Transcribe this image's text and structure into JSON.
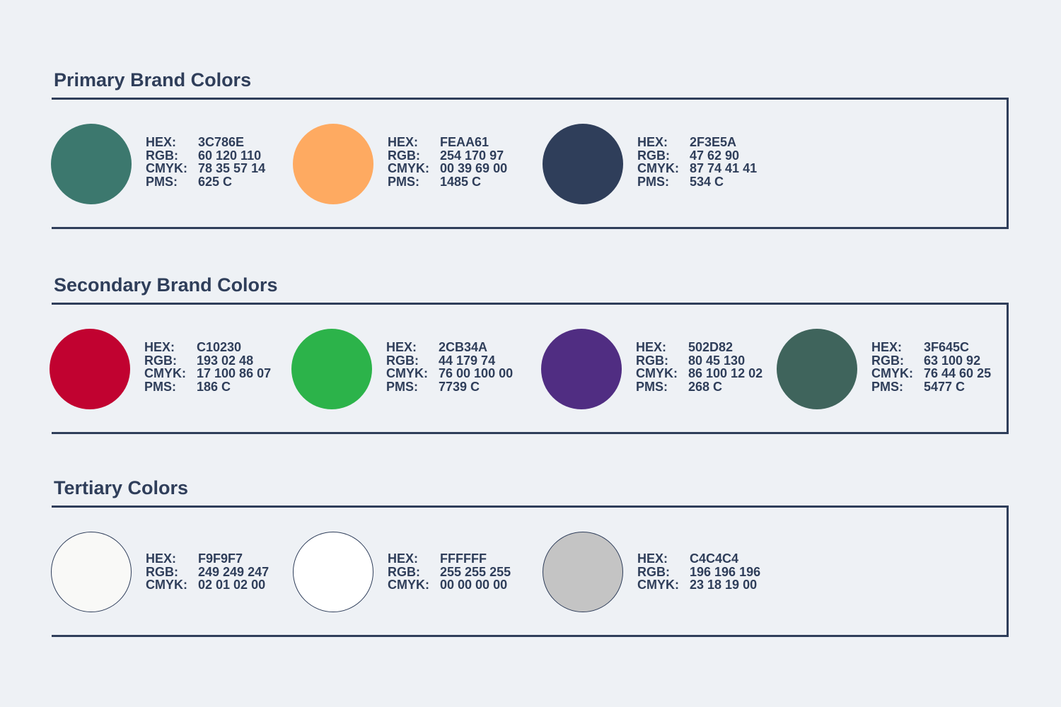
{
  "sections": [
    {
      "title": "Primary Brand Colors",
      "swatches": [
        {
          "hex": "3C786E",
          "rgb": "60 120 110",
          "cmyk": "78 35 57 14",
          "pms": "625 C",
          "fill": "#3C786E"
        },
        {
          "hex": "FEAA61",
          "rgb": "254 170 97",
          "cmyk": "00 39 69 00",
          "pms": "1485 C",
          "fill": "#FEAA61"
        },
        {
          "hex": "2F3E5A",
          "rgb": "47 62 90",
          "cmyk": "87 74 41 41",
          "pms": "534 C",
          "fill": "#2F3E5A"
        }
      ]
    },
    {
      "title": "Secondary Brand Colors",
      "swatches": [
        {
          "hex": "C10230",
          "rgb": "193 02 48",
          "cmyk": "17 100 86 07",
          "pms": "186 C",
          "fill": "#C10230"
        },
        {
          "hex": "2CB34A",
          "rgb": "44 179 74",
          "cmyk": "76 00 100 00",
          "pms": "7739 C",
          "fill": "#2CB34A"
        },
        {
          "hex": "502D82",
          "rgb": "80 45 130",
          "cmyk": "86 100 12 02",
          "pms": "268 C",
          "fill": "#502D82"
        },
        {
          "hex": "3F645C",
          "rgb": "63 100 92",
          "cmyk": "76 44 60 25",
          "pms": "5477 C",
          "fill": "#3F645C"
        }
      ]
    },
    {
      "title": "Tertiary Colors",
      "swatches": [
        {
          "hex": "F9F9F7",
          "rgb": "249 249 247",
          "cmyk": "02 01 02 00",
          "fill": "#F9F9F7"
        },
        {
          "hex": "FFFFFF",
          "rgb": "255 255 255",
          "cmyk": "00 00 00 00",
          "fill": "#FFFFFF"
        },
        {
          "hex": "C4C4C4",
          "rgb": "196 196 196",
          "cmyk": "23 18 19 00",
          "fill": "#C4C4C4"
        }
      ]
    }
  ],
  "labels": {
    "hex": "HEX:",
    "rgb": "RGB:",
    "cmyk": "CMYK:",
    "pms": "PMS:"
  }
}
